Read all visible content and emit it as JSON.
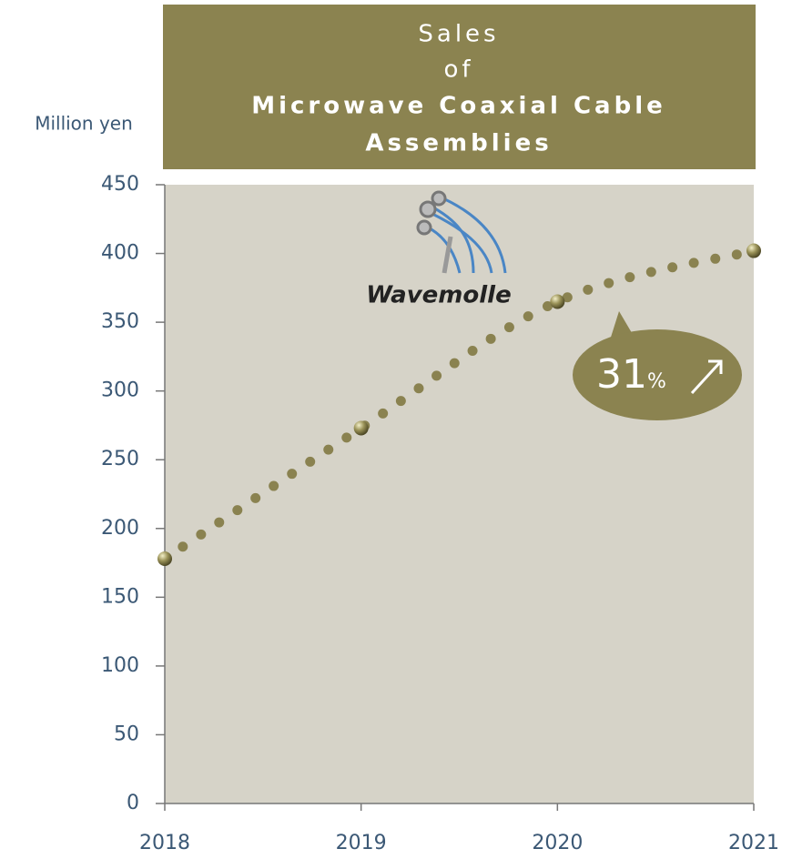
{
  "chart_data": {
    "type": "line",
    "title": [
      "Sales",
      "of",
      "Microwave  Coaxial  Cable",
      "Assemblies"
    ],
    "y_label": "Million yen",
    "logo": "Wavemolle",
    "annotation": {
      "text": "31",
      "unit": "%"
    },
    "x": [
      2018,
      2019,
      2020,
      2021
    ],
    "series": [
      {
        "color": "#8a8250",
        "values": [
          178,
          273,
          365,
          402
        ]
      }
    ],
    "xlim": [
      2018,
      2021
    ],
    "xticks": [
      2018,
      2019,
      2020,
      2021
    ],
    "ylim": [
      0,
      450
    ],
    "yticks": [
      0,
      50,
      100,
      150,
      200,
      250,
      300,
      350,
      400,
      450
    ]
  }
}
